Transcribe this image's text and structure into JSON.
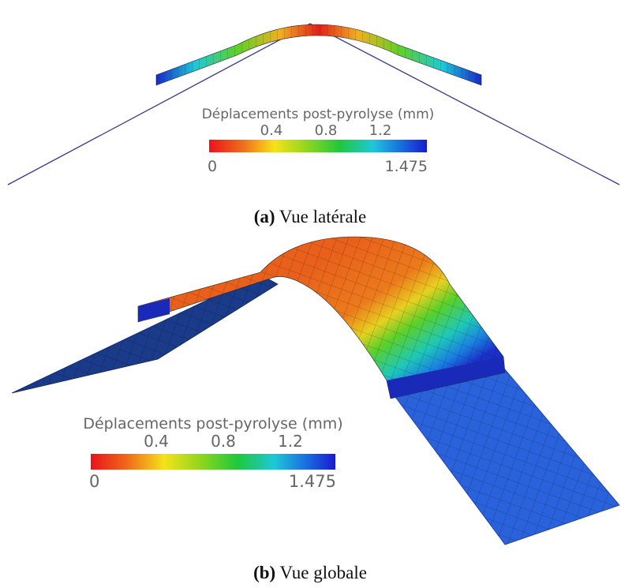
{
  "panels": [
    {
      "label": "(a)",
      "caption": "Vue latérale",
      "colorbar": {
        "title": "Déplacements post-pyrolyse (mm)",
        "ticks": [
          "0.4",
          "0.8",
          "1.2"
        ],
        "min": "0",
        "max": "1.475"
      }
    },
    {
      "label": "(b)",
      "caption": "Vue globale",
      "colorbar": {
        "title": "Déplacements post-pyrolyse (mm)",
        "ticks": [
          "0.4",
          "0.8",
          "1.2"
        ],
        "min": "0",
        "max": "1.475"
      }
    }
  ]
}
